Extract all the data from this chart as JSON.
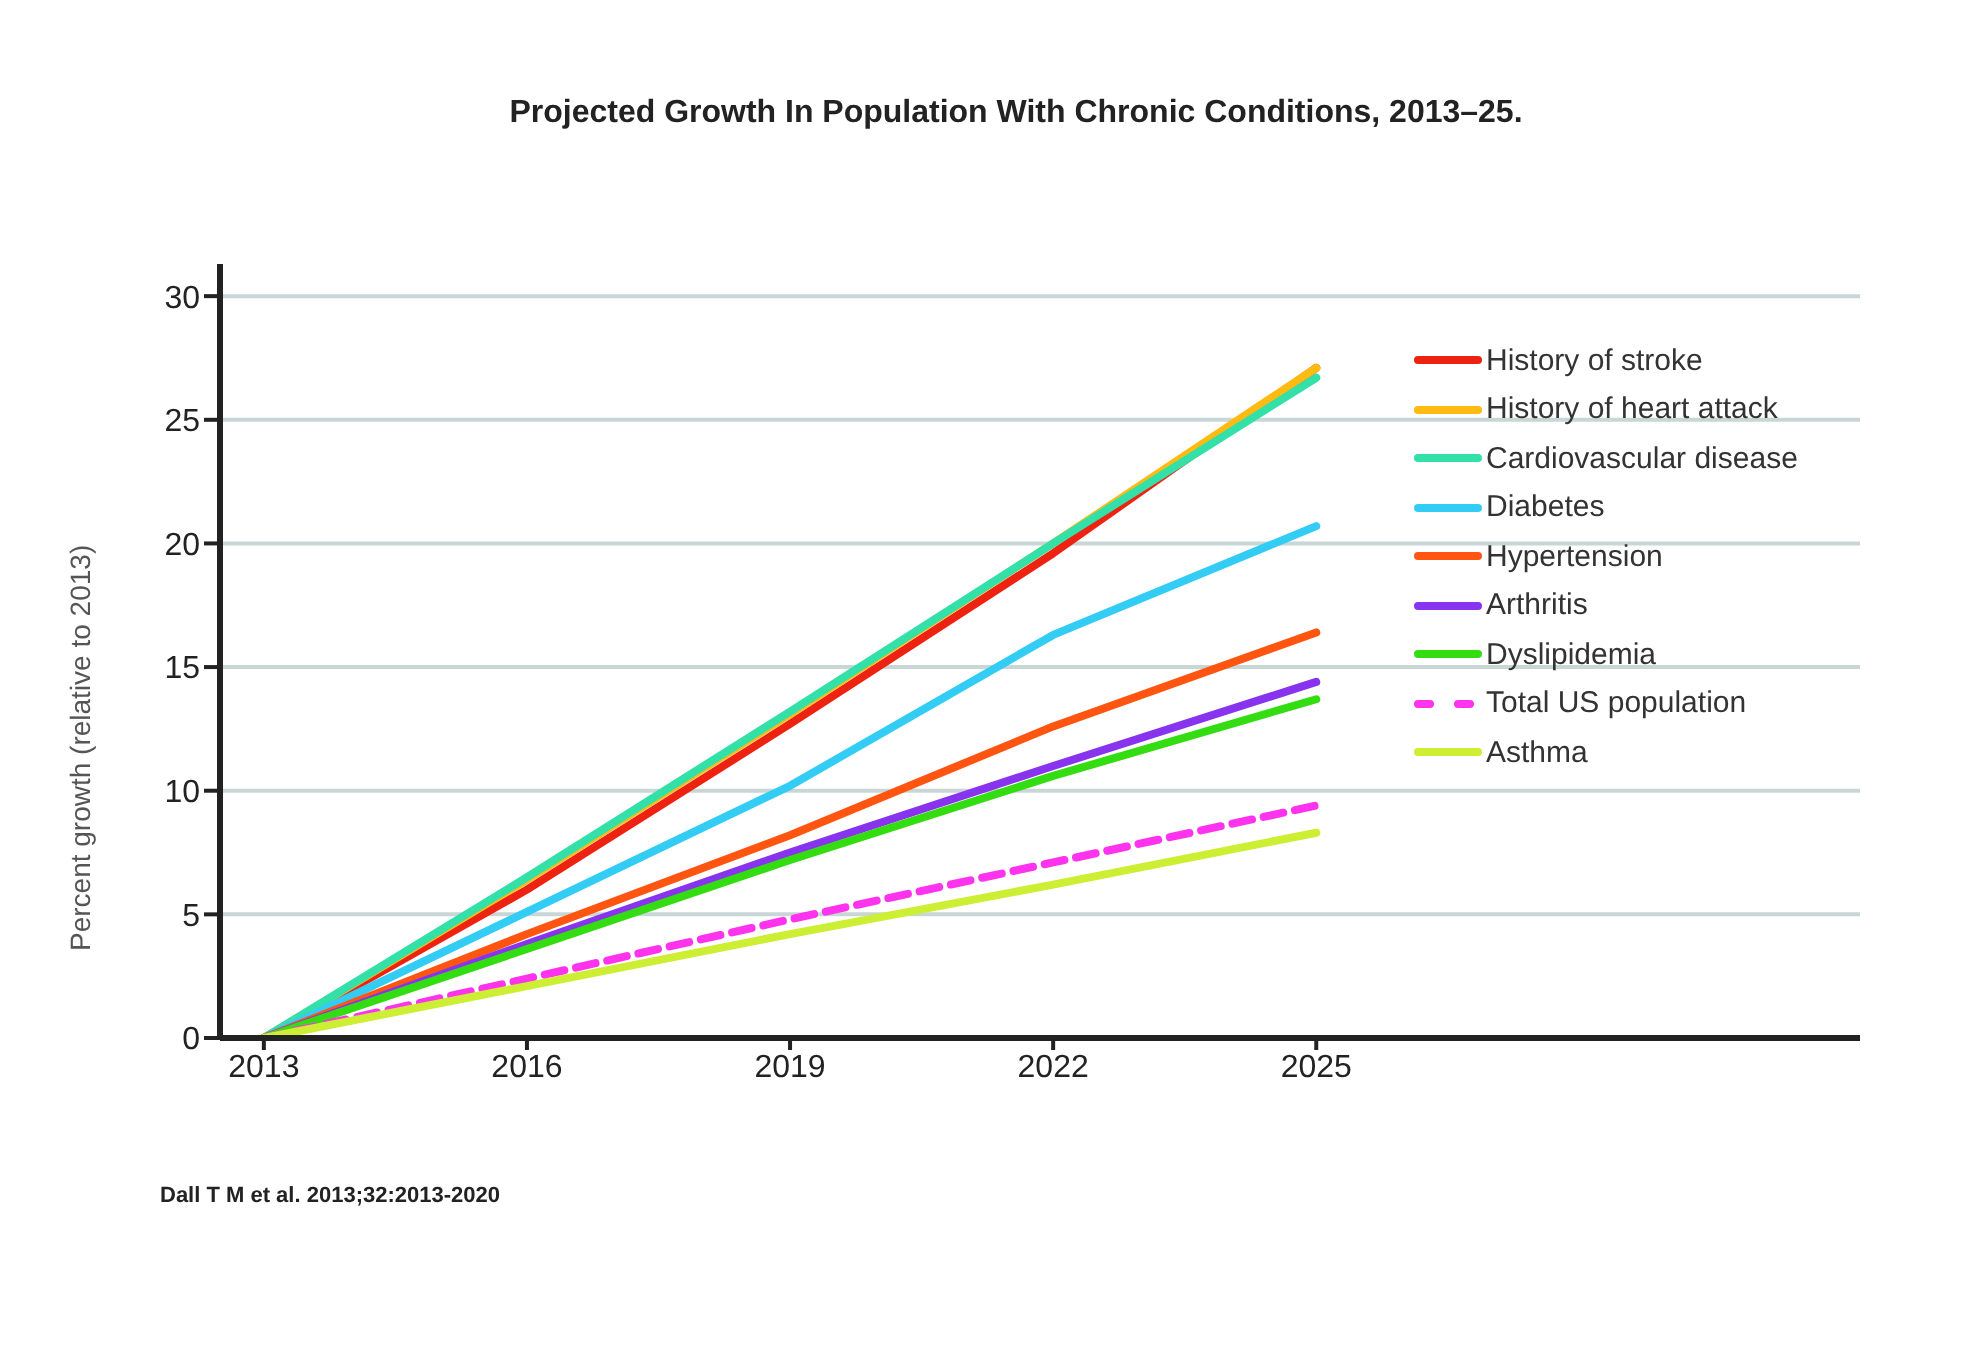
{
  "chart_data": {
    "type": "line",
    "title": "Projected Growth In Population With Chronic Conditions, 2013–25.",
    "ylabel": "Percent growth (relative to 2013)",
    "x": [
      2013,
      2016,
      2019,
      2022,
      2025
    ],
    "xlim": [
      2012.5,
      2031.2
    ],
    "xticks": [
      2013,
      2016,
      2019,
      2022,
      2025
    ],
    "ylim": [
      0,
      31.3
    ],
    "yticks": [
      0,
      5,
      10,
      15,
      20,
      25,
      30
    ],
    "grid": "y",
    "legend": "top right",
    "marker": "none",
    "annotations": [
      "Dall T M et al. 2013;32:2013-2020"
    ],
    "series": [
      {
        "name": "History of stroke",
        "color": "#ee2211",
        "values": [
          0,
          6.0,
          12.7,
          19.6,
          27.1
        ]
      },
      {
        "name": "History of heart attack",
        "color": "#ffbb11",
        "values": [
          0,
          6.4,
          13.1,
          20.0,
          27.1
        ]
      },
      {
        "name": "Cardiovascular disease",
        "color": "#33e0a8",
        "values": [
          0,
          6.5,
          13.2,
          20.0,
          26.7
        ]
      },
      {
        "name": "Diabetes",
        "color": "#33ccf5",
        "values": [
          0,
          5.1,
          10.2,
          16.3,
          20.7
        ]
      },
      {
        "name": "Hypertension",
        "color": "#ff5511",
        "values": [
          0,
          4.2,
          8.2,
          12.6,
          16.4
        ]
      },
      {
        "name": "Arthritis",
        "color": "#8833ee",
        "values": [
          0,
          3.8,
          7.5,
          11.0,
          14.4
        ]
      },
      {
        "name": "Dyslipidemia",
        "color": "#33dd11",
        "values": [
          0,
          3.6,
          7.2,
          10.6,
          13.7
        ]
      },
      {
        "name": "Total US population",
        "color": "#ff33ee",
        "line_style": "dashed",
        "values": [
          0,
          2.4,
          4.8,
          7.1,
          9.4
        ]
      },
      {
        "name": "Asthma",
        "color": "#ccee33",
        "values": [
          0,
          2.1,
          4.2,
          6.2,
          8.3
        ]
      }
    ]
  }
}
